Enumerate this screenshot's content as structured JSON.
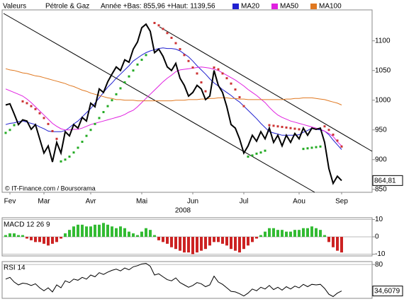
{
  "chart_data": [
    {
      "type": "line",
      "label": "Valeurs",
      "title": "Pétrole & Gaz",
      "subtitle": "Année +Bas: 855,96 +Haut: 1139,56",
      "annotation": "© IT-Finance.com / Boursorama",
      "xlabel": "2008",
      "categories": [
        null,
        "Fev",
        null,
        null,
        null,
        null,
        null,
        null,
        null,
        "Mar",
        null,
        null,
        null,
        null,
        null,
        null,
        null,
        null,
        null,
        null,
        "Avr",
        null,
        null,
        null,
        null,
        null,
        null,
        null,
        null,
        null,
        null,
        null,
        "Mai",
        null,
        null,
        null,
        null,
        null,
        null,
        null,
        null,
        null,
        null,
        null,
        "Jun",
        null,
        null,
        null,
        null,
        null,
        null,
        null,
        null,
        null,
        null,
        null,
        "Jul",
        null,
        null,
        null,
        null,
        null,
        null,
        null,
        null,
        null,
        null,
        null,
        null,
        "Aou",
        null,
        null,
        null,
        null,
        null,
        null,
        null,
        null,
        null,
        "Sep"
      ],
      "ylim": [
        845,
        1152
      ],
      "yticks": [
        850,
        900,
        950,
        1000,
        1050,
        1100
      ],
      "price": {
        "color": "#000000",
        "values": [
          992,
          994,
          977,
          959,
          967,
          965,
          951,
          959,
          935,
          911,
          923,
          896,
          929,
          911,
          947,
          940,
          959,
          953,
          971,
          965,
          995,
          989,
          1019,
          1013,
          1031,
          1044,
          1056,
          1050,
          1068,
          1064,
          1086,
          1098,
          1122,
          1128,
          1116,
          1080,
          1086,
          1074,
          1056,
          1050,
          1062,
          1037,
          1025,
          1007,
          1013,
          1025,
          1019,
          1001,
          1007,
          1050,
          1025,
          1013,
          989,
          959,
          953,
          935,
          911,
          923,
          941,
          931,
          947,
          935,
          953,
          929,
          941,
          923,
          941,
          929,
          944,
          935,
          953,
          941,
          953,
          951,
          953,
          929,
          885,
          860,
          872,
          864.81
        ],
        "value_labels": [
          null,
          null,
          null,
          null,
          null,
          null,
          null,
          null,
          null,
          null,
          null,
          null,
          null,
          null,
          null,
          null,
          null,
          null,
          null,
          null,
          null,
          null,
          null,
          null,
          null,
          null,
          null,
          null,
          null,
          null,
          null,
          null,
          null,
          null,
          null,
          null,
          null,
          null,
          null,
          null,
          null,
          null,
          null,
          null,
          null,
          null,
          null,
          null,
          null,
          null,
          null,
          null,
          null,
          null,
          null,
          null,
          null,
          null,
          null,
          null,
          null,
          null,
          null,
          null,
          null,
          null,
          null,
          null,
          null,
          null,
          null,
          null,
          null,
          null,
          null,
          null,
          null,
          null,
          null,
          "864,81"
        ]
      },
      "series": [
        {
          "name": "MA20",
          "color": "#2020d0",
          "values": [
            959,
            961,
            962,
            964,
            965,
            963,
            961,
            959,
            955,
            952,
            948,
            947,
            947,
            947,
            949,
            954,
            960,
            965,
            972,
            979,
            986,
            995,
            1004,
            1013,
            1022,
            1029,
            1037,
            1044,
            1051,
            1058,
            1066,
            1071,
            1076,
            1080,
            1083,
            1085,
            1087,
            1088,
            1087,
            1087,
            1086,
            1083,
            1078,
            1073,
            1066,
            1058,
            1051,
            1044,
            1036,
            1029,
            1024,
            1018,
            1013,
            1008,
            1002,
            997,
            990,
            983,
            976,
            969,
            961,
            954,
            947,
            945,
            943,
            941,
            941,
            941,
            941,
            942,
            946,
            949,
            953,
            951,
            950,
            948,
            942,
            933,
            925,
            917
          ]
        },
        {
          "name": "MA50",
          "color": "#e020e0",
          "values": [
            1019,
            1016,
            1013,
            1010,
            1007,
            1002,
            996,
            989,
            982,
            975,
            968,
            961,
            956,
            952,
            950,
            950,
            951,
            951,
            953,
            956,
            959,
            961,
            963,
            965,
            967,
            969,
            971,
            973,
            976,
            980,
            983,
            989,
            996,
            1003,
            1010,
            1017,
            1024,
            1031,
            1037,
            1042,
            1048,
            1051,
            1052,
            1053,
            1054,
            1055,
            1056,
            1055,
            1054,
            1052,
            1050,
            1046,
            1042,
            1038,
            1034,
            1029,
            1024,
            1018,
            1013,
            1008,
            1002,
            996,
            988,
            981,
            975,
            971,
            968,
            965,
            963,
            961,
            959,
            957,
            955,
            953,
            951,
            948,
            944,
            939,
            930,
            923
          ]
        },
        {
          "name": "MA100",
          "color": "#e07820",
          "values": [
            1053,
            1051,
            1050,
            1048,
            1046,
            1045,
            1043,
            1041,
            1040,
            1038,
            1036,
            1034,
            1032,
            1030,
            1028,
            1025,
            1023,
            1020,
            1017,
            1015,
            1012,
            1010,
            1008,
            1006,
            1004,
            1003,
            1001,
            1001,
            1000,
            1000,
            1000,
            999,
            999,
            999,
            999,
            999,
            999,
            999,
            999,
            999,
            1000,
            1000,
            1000,
            1001,
            1001,
            1001,
            1002,
            1002,
            1003,
            1003,
            1004,
            1004,
            1004,
            1003,
            1003,
            1002,
            1002,
            1001,
            1001,
            1001,
            1001,
            1001,
            1001,
            1001,
            1001,
            1001,
            1002,
            1002,
            1003,
            1003,
            1004,
            1004,
            1004,
            1003,
            1002,
            1001,
            999,
            997,
            995,
            992
          ]
        }
      ],
      "sar": [
        {
          "color": "#22aa22",
          "values": [
            945,
            950,
            958,
            null,
            null,
            null,
            null,
            null,
            null,
            null,
            null,
            null,
            null,
            897,
            900,
            905,
            912,
            920,
            930,
            940,
            950,
            960,
            970,
            980,
            990,
            1000,
            1010,
            1020,
            1030,
            1040,
            1050,
            1060,
            1068,
            1076,
            null,
            null,
            null,
            null,
            null,
            null,
            null,
            null,
            null,
            null,
            null,
            null,
            null,
            null,
            null,
            null,
            null,
            null,
            null,
            null,
            null,
            null,
            null,
            905,
            907,
            910,
            912,
            915,
            null,
            null,
            null,
            null,
            null,
            null,
            null,
            null,
            918,
            919,
            920,
            921,
            922,
            null,
            null,
            null,
            null,
            null
          ]
        },
        {
          "color": "#cc3333",
          "values": [
            null,
            null,
            null,
            null,
            998,
            995,
            990,
            985,
            978,
            970,
            960,
            948,
            935,
            null,
            null,
            null,
            null,
            null,
            null,
            null,
            null,
            null,
            null,
            null,
            null,
            null,
            null,
            null,
            null,
            null,
            null,
            null,
            null,
            null,
            null,
            1130,
            1126,
            1120,
            1113,
            1105,
            1096,
            1086,
            1076,
            1066,
            1055,
            1045,
            1030,
            1015,
            null,
            1055,
            1052,
            1045,
            1037,
            1028,
            1018,
            1005,
            990,
            null,
            null,
            null,
            null,
            null,
            958,
            957,
            956,
            955,
            954,
            953,
            952,
            951,
            null,
            null,
            null,
            null,
            null,
            956,
            950,
            942,
            932,
            922
          ]
        }
      ]
    },
    {
      "type": "bar",
      "title": "MACD 12 26 9",
      "ylim": [
        -11,
        11
      ],
      "yticks": [
        10,
        0,
        -10
      ],
      "pos_color": "#33bb33",
      "neg_color": "#cc2222",
      "values": [
        1,
        2,
        2,
        1,
        1,
        -1,
        -2,
        -3,
        -3,
        -4,
        -5,
        -4,
        -3,
        -1,
        2,
        4,
        6,
        7,
        7,
        6,
        6,
        7,
        7,
        8,
        7,
        6,
        5,
        6,
        5,
        3,
        2,
        1,
        3,
        5,
        4,
        1,
        -2,
        -3,
        -4,
        -6,
        -7,
        -8,
        -9,
        -9,
        -10,
        -9,
        -8,
        -7,
        -5,
        -3,
        -3,
        -4,
        -5,
        -7,
        -8,
        -9,
        -7,
        -5,
        -3,
        -1,
        1,
        3,
        5,
        5,
        4,
        4,
        3,
        3,
        4,
        4,
        5,
        5,
        6,
        5,
        4,
        1,
        -3,
        -6,
        -8,
        -9
      ]
    },
    {
      "type": "line",
      "title": "RSI 14",
      "ylim": [
        22,
        85
      ],
      "yticks": [
        80
      ],
      "color": "#000000",
      "values": [
        55,
        58,
        50,
        45,
        48,
        47,
        44,
        47,
        40,
        35,
        40,
        33,
        45,
        40,
        52,
        49,
        55,
        53,
        58,
        55,
        62,
        59,
        66,
        63,
        67,
        70,
        72,
        69,
        74,
        71,
        76,
        78,
        81,
        82,
        77,
        62,
        64,
        59,
        54,
        52,
        57,
        49,
        45,
        41,
        44,
        49,
        47,
        42,
        45,
        60,
        50,
        46,
        40,
        34,
        33,
        30,
        26,
        31,
        38,
        35,
        41,
        38,
        44,
        37,
        41,
        36,
        42,
        38,
        43,
        40,
        46,
        42,
        46,
        45,
        46,
        39,
        29,
        25,
        31,
        34.6079
      ],
      "value_labels": [
        null,
        null,
        null,
        null,
        null,
        null,
        null,
        null,
        null,
        null,
        null,
        null,
        null,
        null,
        null,
        null,
        null,
        null,
        null,
        null,
        null,
        null,
        null,
        null,
        null,
        null,
        null,
        null,
        null,
        null,
        null,
        null,
        null,
        null,
        null,
        null,
        null,
        null,
        null,
        null,
        null,
        null,
        null,
        null,
        null,
        null,
        null,
        null,
        null,
        null,
        null,
        null,
        null,
        null,
        null,
        null,
        null,
        null,
        null,
        null,
        null,
        null,
        null,
        null,
        null,
        null,
        null,
        null,
        null,
        null,
        null,
        null,
        null,
        null,
        null,
        null,
        null,
        null,
        null,
        "34,6079"
      ]
    }
  ]
}
